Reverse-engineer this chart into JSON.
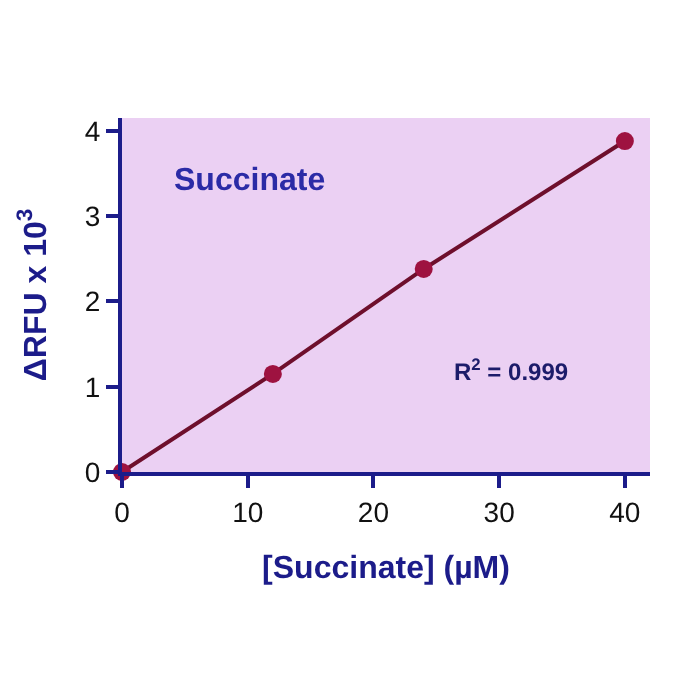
{
  "chart_data": {
    "type": "line",
    "xlabel": "[Succinate] (µM)",
    "ylabel": "ΔRFU x 10$^{3}$",
    "x": [
      0,
      12,
      24,
      40
    ],
    "series": [
      {
        "color": "#9e1240",
        "values": [
          0,
          1.15,
          2.38,
          3.88
        ]
      }
    ],
    "marker": "circle",
    "line_style": "solid",
    "xlim": [
      0,
      42
    ],
    "ylim": [
      0,
      4.15
    ],
    "xticks": [
      0,
      10,
      20,
      30,
      40
    ],
    "yticks": [
      0,
      1,
      2,
      3,
      4
    ],
    "grid": false,
    "annotations": [
      "Succinate",
      "R$^{2}$ = 0.999"
    ]
  }
}
